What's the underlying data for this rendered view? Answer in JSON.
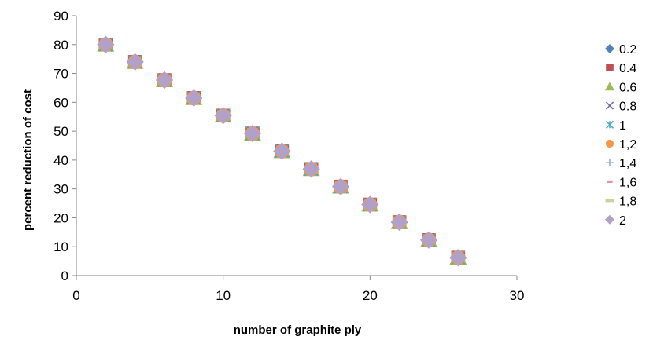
{
  "chart_data": {
    "type": "scatter",
    "title": "",
    "xlabel": "number of graphite ply",
    "ylabel": "percent reduction of cost",
    "xlim": [
      0,
      30
    ],
    "ylim": [
      0,
      90
    ],
    "xticks": [
      0,
      10,
      20,
      30
    ],
    "yticks": [
      0,
      10,
      20,
      30,
      40,
      50,
      60,
      70,
      80,
      90
    ],
    "grid": false,
    "legend_position": "right",
    "x": [
      2,
      4,
      6,
      8,
      10,
      12,
      14,
      16,
      18,
      20,
      22,
      24,
      26
    ],
    "series": [
      {
        "name": "0.2",
        "marker": "diamond",
        "color": "#4F81BD",
        "values": [
          80,
          74,
          67.7,
          61.5,
          55.4,
          49.2,
          43.1,
          36.9,
          30.8,
          24.6,
          18.5,
          12.3,
          6.2
        ]
      },
      {
        "name": "0.4",
        "marker": "square",
        "color": "#C0504D",
        "values": [
          80,
          74,
          67.7,
          61.5,
          55.4,
          49.2,
          43.1,
          36.9,
          30.8,
          24.6,
          18.5,
          12.3,
          6.2
        ]
      },
      {
        "name": "0.6",
        "marker": "triangle",
        "color": "#9BBB59",
        "values": [
          80,
          74,
          67.7,
          61.5,
          55.4,
          49.2,
          43.1,
          36.9,
          30.8,
          24.6,
          18.5,
          12.3,
          6.2
        ]
      },
      {
        "name": "0.8",
        "marker": "x",
        "color": "#8064A2",
        "values": [
          80,
          74,
          67.7,
          61.5,
          55.4,
          49.2,
          43.1,
          36.9,
          30.8,
          24.6,
          18.5,
          12.3,
          6.2
        ]
      },
      {
        "name": "1",
        "marker": "star",
        "color": "#4BACC6",
        "values": [
          80,
          74,
          67.7,
          61.5,
          55.4,
          49.2,
          43.1,
          36.9,
          30.8,
          24.6,
          18.5,
          12.3,
          6.2
        ]
      },
      {
        "name": "1,2",
        "marker": "circle",
        "color": "#F79646",
        "values": [
          80,
          74,
          67.7,
          61.5,
          55.4,
          49.2,
          43.1,
          36.9,
          30.8,
          24.6,
          18.5,
          12.3,
          6.2
        ]
      },
      {
        "name": "1,4",
        "marker": "plus",
        "color": "#95B3D7",
        "values": [
          80,
          74,
          67.7,
          61.5,
          55.4,
          49.2,
          43.1,
          36.9,
          30.8,
          24.6,
          18.5,
          12.3,
          6.2
        ]
      },
      {
        "name": "1,6",
        "marker": "dash",
        "color": "#E6949A",
        "values": [
          80,
          74,
          67.7,
          61.5,
          55.4,
          49.2,
          43.1,
          36.9,
          30.8,
          24.6,
          18.5,
          12.3,
          6.2
        ]
      },
      {
        "name": "1,8",
        "marker": "longdash",
        "color": "#C3D69B",
        "values": [
          80,
          74,
          67.7,
          61.5,
          55.4,
          49.2,
          43.1,
          36.9,
          30.8,
          24.6,
          18.5,
          12.3,
          6.2
        ]
      },
      {
        "name": "2",
        "marker": "diamond",
        "color": "#B1A0C7",
        "values": [
          80,
          74,
          67.7,
          61.5,
          55.4,
          49.2,
          43.1,
          36.9,
          30.8,
          24.6,
          18.5,
          12.3,
          6.2
        ]
      }
    ]
  }
}
